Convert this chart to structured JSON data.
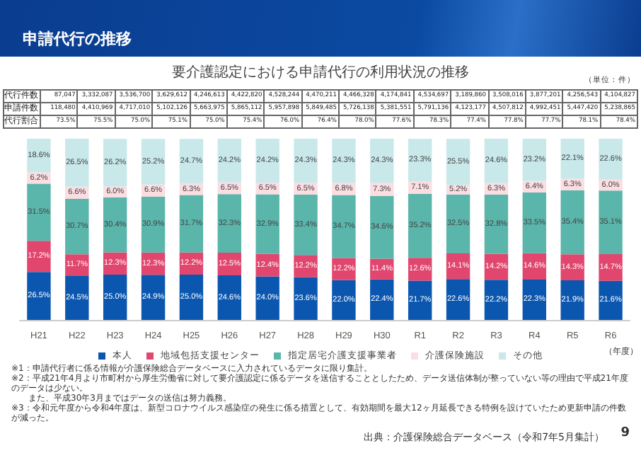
{
  "chart_data": {
    "type": "bar",
    "stacked": true,
    "title": "申請代行の推移",
    "subtitle": "要介護認定における申請代行の利用状況の推移",
    "categories": [
      "H21",
      "H22",
      "H23",
      "H24",
      "H25",
      "H26",
      "H27",
      "H28",
      "H29",
      "H30",
      "R1",
      "R2",
      "R3",
      "R4",
      "R5",
      "R6"
    ],
    "ylim": [
      0,
      100
    ],
    "tick_labels": "x",
    "legend": "bottom",
    "series": [
      {
        "name": "本人",
        "color": "#0b57b0",
        "values": [
          26.5,
          24.5,
          25.0,
          24.9,
          25.0,
          24.6,
          24.0,
          23.6,
          22.0,
          22.4,
          21.7,
          22.6,
          22.2,
          22.3,
          21.9,
          21.6
        ],
        "value_labels": [
          "26.5%",
          "24.5%",
          "25.0%",
          "24.9%",
          "25.0%",
          "24.6%",
          "24.0%",
          "23.6%",
          "22.0%",
          "22.4%",
          "21.7%",
          "22.6%",
          "22.2%",
          "22.3%",
          "21.9%",
          "21.6%"
        ]
      },
      {
        "name": "地域包括支援センター",
        "color": "#e0466e",
        "values": [
          17.2,
          11.7,
          12.3,
          12.3,
          12.2,
          12.5,
          12.4,
          12.2,
          12.2,
          11.4,
          12.6,
          14.1,
          14.2,
          14.6,
          14.3,
          14.7
        ],
        "value_labels": [
          "17.2%",
          "11.7%",
          "12.3%",
          "12.3%",
          "12.2%",
          "12.5%",
          "12.4%",
          "12.2%",
          "12.2%",
          "11.4%",
          "12.6%",
          "14.1%",
          "14.2%",
          "14.6%",
          "14.3%",
          "14.7%"
        ]
      },
      {
        "name": "指定居宅介護支援事業者",
        "color": "#5ab5aa",
        "values": [
          31.5,
          30.7,
          30.4,
          30.9,
          31.7,
          32.3,
          32.9,
          33.4,
          34.7,
          34.6,
          35.2,
          32.5,
          32.8,
          33.5,
          35.4,
          35.1
        ],
        "value_labels": [
          "31.5%",
          "30.7%",
          "30.4%",
          "30.9%",
          "31.7%",
          "32.3%",
          "32.9%",
          "33.4%",
          "34.7%",
          "34.6%",
          "35.2%",
          "32.5%",
          "32.8%",
          "33.5%",
          "35.4%",
          "35.1%"
        ]
      },
      {
        "name": "介護保険施設",
        "color": "#fbdde2",
        "values": [
          6.2,
          6.6,
          6.0,
          6.6,
          6.3,
          6.5,
          6.5,
          6.5,
          6.8,
          7.3,
          7.1,
          5.2,
          6.3,
          6.4,
          6.3,
          6.0
        ],
        "value_labels": [
          "6.2%",
          "6.6%",
          "6.0%",
          "6.6%",
          "6.3%",
          "6.5%",
          "6.5%",
          "6.5%",
          "6.8%",
          "7.3%",
          "7.1%",
          "5.2%",
          "6.3%",
          "6.4%",
          "6.3%",
          "6.0%"
        ]
      },
      {
        "name": "その他",
        "color": "#c8e8ea",
        "values": [
          18.6,
          26.5,
          26.2,
          25.2,
          24.7,
          24.2,
          24.2,
          24.3,
          24.3,
          24.3,
          23.3,
          25.5,
          24.6,
          23.2,
          22.1,
          22.6
        ],
        "value_labels": [
          "18.6%",
          "26.5%",
          "26.2%",
          "25.2%",
          "24.7%",
          "24.2%",
          "24.2%",
          "24.3%",
          "24.3%",
          "24.3%",
          "23.3%",
          "25.5%",
          "24.6%",
          "23.2%",
          "22.1%",
          "22.6%"
        ]
      }
    ],
    "annotations": [
      "代行件数 87,047 3,332,087 3,536,700 3,629,612 4,246,613 4,422,820 4,528,244 4,470,211 4,466,328 4,174,841 4,534,697 3,189,860 3,508,016 3,877,201 4,256,543 4,104,827",
      "申請件数 118,480 4,410,969 4,717,010 5,102,126 5,663,975 5,865,112 5,957,898 5,849,485 5,726,138 5,381,551 5,791,136 4,123,177 4,507,812 4,992,451 5,447,420 5,238,865",
      "代行割合 73.5% 75.5% 75.0% 75.1% 75.0% 75.4% 76.0% 76.4% 78.0% 77.6% 78.3% 77.4% 77.8% 77.7% 78.1% 78.4%",
      "（単位：件）",
      "（年度）",
      "※1：申請代行者に係る情報が介護保険総合データベースに入力されているデータに限り集計。",
      "※2：平成21年4月より市町村から厚生労働省に対して要介護認定に係るデータを送信することとしたため、データ送信体制が整っていない等の理由で平成21年度のデータは少ない。",
      "また、平成30年3月まではデータの送信は努力義務。",
      "※3：令和元年度から令和4年度は、新型コロナウイルス感染症の発生に係る措置として、有効期間を最大12ヶ月延長できる特例を設けていたため更新申請の件数が減った。",
      "出典：介護保険総合データベース（令和7年5月集計）",
      "9"
    ]
  }
}
